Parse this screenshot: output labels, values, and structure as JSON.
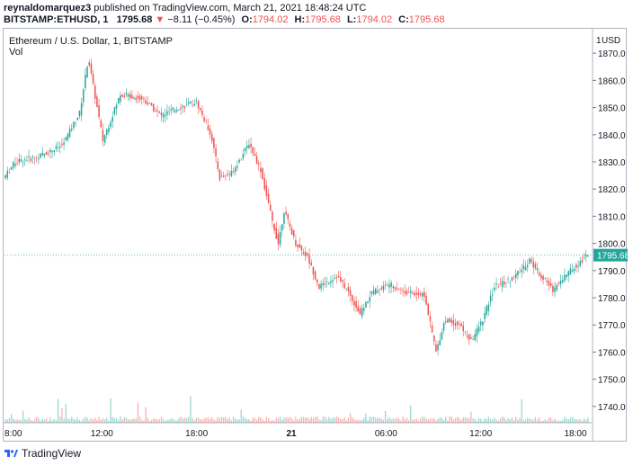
{
  "header": {
    "author": "reynaldomarquez3",
    "published_text": "published on TradingView.com, March 21, 2021 18:48:24 UTC",
    "symbol": "BITSTAMP:ETHUSD, 1",
    "price": "1795.68",
    "change_arrow": "▼",
    "change": "−8.11 (−0.45%)",
    "open_label": "O:",
    "open": "1794.02",
    "high_label": "H:",
    "high": "1795.68",
    "low_label": "L:",
    "low": "1794.02",
    "close_label": "C:",
    "close": "1795.68"
  },
  "footer": {
    "brand": "TradingView"
  },
  "chart_data": {
    "type": "candlestick",
    "title": "Ethereum / U.S. Dollar, 1, BITSTAMP",
    "volume_label": "Vol",
    "y_unit": "USD",
    "y_axis_label": "1",
    "ylim": [
      1734,
      1877
    ],
    "y_ticks": [
      1870,
      1860,
      1850,
      1840,
      1830,
      1820,
      1810,
      1800,
      1790,
      1780,
      1770,
      1760,
      1750,
      1740
    ],
    "x_ticks": [
      "8:00",
      "12:00",
      "18:00",
      "21",
      "06:00",
      "12:00",
      "18:00"
    ],
    "current_price": 1795.68,
    "colors": {
      "up": "#26a69a",
      "down": "#ef5350",
      "axis": "#131722",
      "price_badge": "#26a69a"
    },
    "grid": false,
    "price_path": [
      [
        0,
        1824
      ],
      [
        0.02,
        1830
      ],
      [
        0.06,
        1832
      ],
      [
        0.1,
        1836
      ],
      [
        0.13,
        1848
      ],
      [
        0.145,
        1868
      ],
      [
        0.16,
        1850
      ],
      [
        0.17,
        1838
      ],
      [
        0.2,
        1855
      ],
      [
        0.24,
        1853
      ],
      [
        0.27,
        1847
      ],
      [
        0.3,
        1850
      ],
      [
        0.33,
        1852
      ],
      [
        0.355,
        1840
      ],
      [
        0.37,
        1824
      ],
      [
        0.39,
        1826
      ],
      [
        0.41,
        1833
      ],
      [
        0.42,
        1837
      ],
      [
        0.44,
        1827
      ],
      [
        0.46,
        1808
      ],
      [
        0.47,
        1800
      ],
      [
        0.48,
        1812
      ],
      [
        0.5,
        1800
      ],
      [
        0.52,
        1795
      ],
      [
        0.54,
        1784
      ],
      [
        0.57,
        1788
      ],
      [
        0.59,
        1782
      ],
      [
        0.61,
        1774
      ],
      [
        0.63,
        1782
      ],
      [
        0.66,
        1785
      ],
      [
        0.69,
        1782
      ],
      [
        0.72,
        1781
      ],
      [
        0.74,
        1760
      ],
      [
        0.755,
        1772
      ],
      [
        0.78,
        1770
      ],
      [
        0.8,
        1764
      ],
      [
        0.82,
        1772
      ],
      [
        0.84,
        1784
      ],
      [
        0.87,
        1787
      ],
      [
        0.89,
        1791
      ],
      [
        0.9,
        1794
      ],
      [
        0.92,
        1788
      ],
      [
        0.94,
        1783
      ],
      [
        0.96,
        1788
      ],
      [
        0.98,
        1792
      ],
      [
        1.0,
        1795.68
      ]
    ]
  }
}
